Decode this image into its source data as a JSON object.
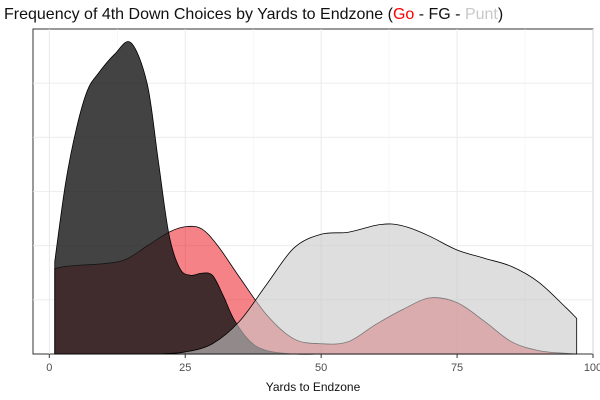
{
  "chart_data": {
    "type": "area",
    "title": {
      "prefix": "Frequency of 4th Down Choices by Yards to Endzone (",
      "go": "Go",
      "sep1": " - ",
      "fg": "FG",
      "sep2": " - ",
      "punt": "Punt",
      "suffix": ")"
    },
    "xlabel": "Yards to Endzone",
    "ylabel": "",
    "xlim": [
      -3,
      100
    ],
    "ylim": [
      0,
      0.0475
    ],
    "x_ticks": [
      0,
      25,
      50,
      75,
      100
    ],
    "grid": true,
    "legend": "none",
    "series": [
      {
        "name": "Go",
        "color": "#ed1c24",
        "opacity": 0.55,
        "x": [
          1,
          3,
          6,
          10,
          14,
          18,
          22,
          25,
          28,
          31,
          35,
          40,
          45,
          50,
          55,
          60,
          65,
          70,
          75,
          80,
          85,
          90,
          95,
          97
        ],
        "y": [
          0.0125,
          0.0128,
          0.013,
          0.0132,
          0.0138,
          0.0158,
          0.0178,
          0.0186,
          0.0183,
          0.0158,
          0.0112,
          0.0057,
          0.0022,
          0.0015,
          0.0018,
          0.0043,
          0.0065,
          0.0082,
          0.0075,
          0.0048,
          0.0018,
          0.0005,
          0.0001,
          0.0
        ]
      },
      {
        "name": "FG",
        "color": "#1a1a1a",
        "opacity": 0.82,
        "x": [
          1,
          3,
          5,
          7,
          9,
          12,
          15,
          18,
          20,
          22,
          24,
          26,
          28,
          30,
          32,
          34,
          37,
          40,
          45,
          50
        ],
        "y": [
          0.0135,
          0.025,
          0.033,
          0.0385,
          0.041,
          0.0438,
          0.0455,
          0.0395,
          0.0285,
          0.0175,
          0.0125,
          0.0115,
          0.0118,
          0.0115,
          0.0085,
          0.005,
          0.0018,
          0.0005,
          0.0,
          0.0
        ]
      },
      {
        "name": "Punt",
        "color": "#c8c8c8",
        "opacity": 0.6,
        "x": [
          20,
          25,
          30,
          35,
          40,
          45,
          50,
          55,
          60,
          63,
          66,
          70,
          75,
          80,
          85,
          90,
          95,
          97
        ],
        "y": [
          0.0,
          0.0003,
          0.0015,
          0.0048,
          0.0102,
          0.0155,
          0.0175,
          0.0178,
          0.0188,
          0.019,
          0.0185,
          0.0172,
          0.0152,
          0.014,
          0.0128,
          0.0105,
          0.0068,
          0.0052
        ]
      }
    ]
  }
}
